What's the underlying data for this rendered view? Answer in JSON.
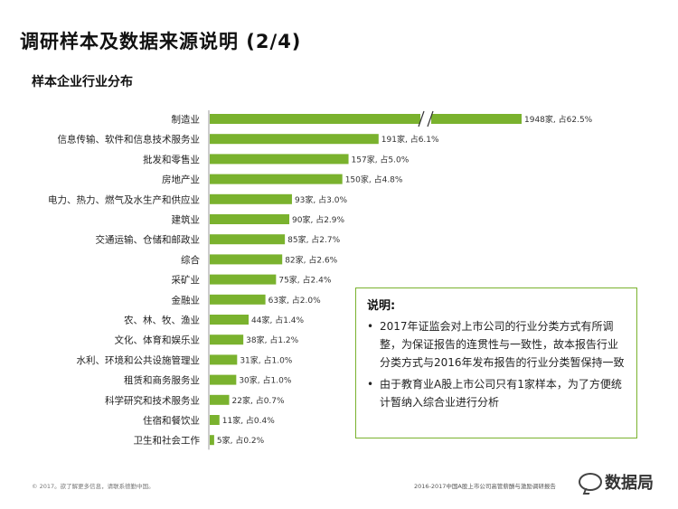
{
  "page": {
    "title": "调研样本及数据来源说明 (2/4)",
    "section_title": "样本企业行业分布"
  },
  "chart_data": {
    "type": "bar",
    "orientation": "horizontal",
    "axis_break": true,
    "bar_color": "#7ab22e",
    "categories": [
      "制造业",
      "信息传输、软件和信息技术服务业",
      "批发和零售业",
      "房地产业",
      "电力、热力、燃气及水生产和供应业",
      "建筑业",
      "交通运输、仓储和邮政业",
      "综合",
      "采矿业",
      "金融业",
      "农、林、牧、渔业",
      "文化、体育和娱乐业",
      "水利、环境和公共设施管理业",
      "租赁和商务服务业",
      "科学研究和技术服务业",
      "住宿和餐饮业",
      "卫生和社会工作"
    ],
    "values": [
      1948,
      191,
      157,
      150,
      93,
      90,
      85,
      82,
      75,
      63,
      44,
      38,
      31,
      30,
      22,
      11,
      5
    ],
    "data_labels": [
      "1948家, 占62.5%",
      "191家, 占6.1%",
      "157家, 占5.0%",
      "150家, 占4.8%",
      "93家, 占3.0%",
      "90家, 占2.9%",
      "85家, 占2.7%",
      "82家, 占2.6%",
      "75家, 占2.4%",
      "63家, 占2.0%",
      "44家, 占1.4%",
      "38家, 占1.2%",
      "31家, 占1.0%",
      "30家, 占1.0%",
      "22家, 占0.7%",
      "11家, 占0.4%",
      "5家, 占0.2%"
    ]
  },
  "note": {
    "title": "说明:",
    "items": [
      "2017年证监会对上市公司的行业分类方式有所调整，为保证报告的连贯性与一致性，故本报告行业分类方式与2016年发布报告的行业分类暂保持一致",
      "由于教育业A股上市公司只有1家样本，为了方便统计暂纳入综合业进行分析"
    ]
  },
  "footer": {
    "left": "© 2017。欲了解更多信息，请联系德勤中国。",
    "right": "2016-2017中国A股上市公司高管薪酬与激励调研报告",
    "watermark": "数据局"
  }
}
